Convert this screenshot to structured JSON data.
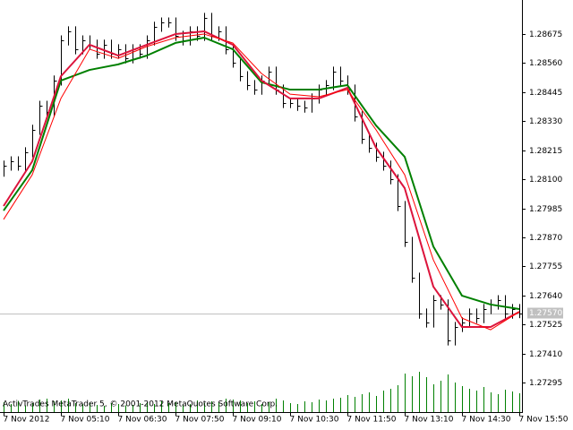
{
  "chart_data": {
    "type": "ohlc",
    "footer": "ActivTrades MetaTrader 5, © 2001-2012 MetaQuotes Software Corp.",
    "x_labels": [
      {
        "value": 0,
        "label": "7 Nov 2012"
      },
      {
        "value": 8,
        "label": "7 Nov 05:10"
      },
      {
        "value": 16,
        "label": "7 Nov 06:30"
      },
      {
        "value": 24,
        "label": "7 Nov 07:50"
      },
      {
        "value": 32,
        "label": "7 Nov 09:10"
      },
      {
        "value": 40,
        "label": "7 Nov 10:30"
      },
      {
        "value": 48,
        "label": "7 Nov 11:50"
      },
      {
        "value": 56,
        "label": "7 Nov 13:10"
      },
      {
        "value": 64,
        "label": "7 Nov 14:30"
      },
      {
        "value": 72,
        "label": "7 Nov 15:50"
      }
    ],
    "ylim": [
      1.27178,
      1.2881
    ],
    "yticks": [
      1.28675,
      {
        "value": 1.2856,
        "label": "1.28560"
      },
      1.28445,
      {
        "value": 1.2833,
        "label": "1.28330"
      },
      1.28215,
      {
        "value": 1.281,
        "label": "1.28100"
      },
      1.27985,
      {
        "value": 1.2787,
        "label": "1.27870"
      },
      1.27755,
      {
        "value": 1.2764,
        "label": "1.27640"
      },
      1.27525,
      {
        "value": 1.2741,
        "label": "1.27410"
      },
      1.27295
    ],
    "bar_color": "#000000",
    "bars": {
      "high": [
        1.28174,
        1.28191,
        1.28191,
        1.28227,
        1.28316,
        1.28411,
        1.28411,
        1.28511,
        1.2867,
        1.28706,
        1.28706,
        1.2867,
        1.2867,
        1.28653,
        1.28653,
        1.28653,
        1.28635,
        1.28635,
        1.28635,
        1.28635,
        1.2867,
        1.28724,
        1.28741,
        1.28741,
        1.28741,
        1.28688,
        1.28706,
        1.28706,
        1.28759,
        1.28759,
        1.28706,
        1.28706,
        1.28635,
        1.28582,
        1.28528,
        1.28493,
        1.28511,
        1.28546,
        1.28546,
        1.28475,
        1.28422,
        1.28422,
        1.28411,
        1.2844,
        1.28475,
        1.28493,
        1.28546,
        1.28546,
        1.28511,
        1.28475,
        1.28369,
        1.2828,
        1.28245,
        1.28209,
        1.28174,
        1.2812,
        1.28014,
        1.27872,
        1.2773,
        1.27588,
        1.27641,
        1.27641,
        1.27624,
        1.27535,
        1.27553,
        1.27588,
        1.27588,
        1.27606,
        1.27624,
        1.27641,
        1.27641,
        1.27606,
        1.27606
      ],
      "low": [
        1.2811,
        1.28134,
        1.28134,
        1.28134,
        1.28187,
        1.28276,
        1.28347,
        1.28347,
        1.28471,
        1.2863,
        1.28595,
        1.28595,
        1.28613,
        1.28577,
        1.28577,
        1.28577,
        1.28577,
        1.28559,
        1.28559,
        1.28577,
        1.28577,
        1.2863,
        1.28684,
        1.28701,
        1.28648,
        1.2863,
        1.2863,
        1.28648,
        1.28648,
        1.28648,
        1.28648,
        1.28595,
        1.28542,
        1.28488,
        1.28453,
        1.28435,
        1.28435,
        1.28471,
        1.28435,
        1.28382,
        1.28382,
        1.28371,
        1.28364,
        1.28364,
        1.284,
        1.28435,
        1.28453,
        1.28471,
        1.28435,
        1.28329,
        1.2824,
        1.28205,
        1.28169,
        1.28134,
        1.2808,
        1.27974,
        1.27832,
        1.2769,
        1.27548,
        1.27513,
        1.27513,
        1.27584,
        1.27442,
        1.27442,
        1.27495,
        1.27513,
        1.2753,
        1.2753,
        1.27566,
        1.27584,
        1.27548,
        1.27548,
        1.2755
      ],
      "close": [
        1.28154,
        1.28171,
        1.28154,
        1.28207,
        1.28296,
        1.28391,
        1.28367,
        1.28491,
        1.2865,
        1.28686,
        1.28615,
        1.2865,
        1.28633,
        1.28597,
        1.28633,
        1.28597,
        1.28615,
        1.28579,
        1.28615,
        1.28597,
        1.2865,
        1.28704,
        1.28721,
        1.28721,
        1.28668,
        1.2865,
        1.28686,
        1.28668,
        1.28739,
        1.28668,
        1.28686,
        1.28615,
        1.28562,
        1.28508,
        1.28473,
        1.28455,
        1.28491,
        1.28526,
        1.28455,
        1.28402,
        1.28402,
        1.28391,
        1.28384,
        1.2842,
        1.28455,
        1.28473,
        1.28526,
        1.28491,
        1.28455,
        1.28349,
        1.2826,
        1.28225,
        1.28189,
        1.28154,
        1.281,
        1.27994,
        1.27852,
        1.2771,
        1.27568,
        1.27533,
        1.27621,
        1.27604,
        1.27462,
        1.27515,
        1.27533,
        1.27568,
        1.2755,
        1.27586,
        1.27604,
        1.27621,
        1.27568,
        1.27586,
        1.2757
      ]
    },
    "volume": {
      "color": "#008000",
      "ylim": [
        0,
        100
      ],
      "values": [
        22,
        18,
        25,
        15,
        20,
        28,
        30,
        24,
        26,
        30,
        20,
        18,
        22,
        16,
        14,
        20,
        18,
        15,
        16,
        20,
        22,
        18,
        24,
        20,
        22,
        16,
        18,
        26,
        20,
        24,
        22,
        30,
        28,
        26,
        20,
        24,
        18,
        22,
        30,
        26,
        20,
        18,
        24,
        22,
        28,
        26,
        30,
        32,
        38,
        34,
        40,
        44,
        36,
        48,
        52,
        60,
        86,
        80,
        90,
        78,
        62,
        70,
        84,
        66,
        58,
        52,
        48,
        56,
        44,
        40,
        50,
        46,
        42
      ]
    },
    "series": [
      {
        "color": "#008000",
        "width": 2,
        "x": [
          0,
          4,
          8,
          12,
          16,
          20,
          24,
          28,
          32,
          36,
          40,
          44,
          48,
          52,
          56,
          60,
          64,
          68,
          72
        ],
        "values": [
          1.27976,
          1.28136,
          1.28491,
          1.28533,
          1.28555,
          1.2859,
          1.2864,
          1.28661,
          1.28615,
          1.28484,
          1.28455,
          1.28455,
          1.28473,
          1.28313,
          1.28189,
          1.27834,
          1.27639,
          1.27604,
          1.27586
        ]
      },
      {
        "color": "#dc143c",
        "width": 2,
        "x": [
          0,
          4,
          8,
          12,
          16,
          20,
          24,
          28,
          32,
          36,
          40,
          44,
          48,
          52,
          56,
          60,
          64,
          68,
          72
        ],
        "values": [
          1.27994,
          1.28171,
          1.28508,
          1.28633,
          1.2859,
          1.28633,
          1.28675,
          1.28686,
          1.28633,
          1.28491,
          1.2842,
          1.2842,
          1.28462,
          1.28225,
          1.28065,
          1.27675,
          1.27515,
          1.27515,
          1.27575
        ]
      },
      {
        "color": "#ff0000",
        "width": 1,
        "x": [
          0,
          4,
          8,
          12,
          16,
          20,
          24,
          28,
          32,
          36,
          40,
          44,
          48,
          52,
          56,
          60,
          64,
          68,
          72
        ],
        "values": [
          1.27941,
          1.28118,
          1.2842,
          1.28615,
          1.28579,
          1.28626,
          1.28661,
          1.28675,
          1.2864,
          1.28519,
          1.28437,
          1.28427,
          1.28455,
          1.28296,
          1.28118,
          1.27781,
          1.2755,
          1.27504,
          1.27575
        ]
      }
    ],
    "last_price": {
      "value": 1.2757,
      "label": "1.27570"
    },
    "grid": false
  }
}
